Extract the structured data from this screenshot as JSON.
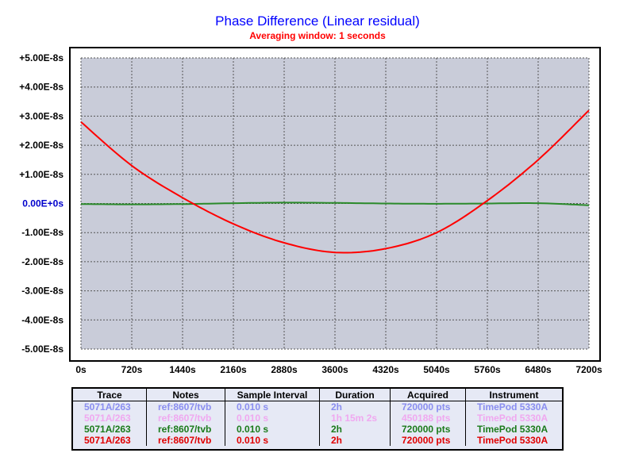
{
  "chart_data": {
    "type": "line",
    "title": "Phase Difference (Linear residual)",
    "subtitle": "Averaging window: 1 seconds",
    "xlim": [
      0,
      7200
    ],
    "ylim": [
      -5e-08,
      5e-08
    ],
    "x_ticks": [
      "0s",
      "720s",
      "1440s",
      "2160s",
      "2880s",
      "3600s",
      "4320s",
      "5040s",
      "5760s",
      "6480s",
      "7200s"
    ],
    "y_ticks": [
      "+5.00E-8s",
      "+4.00E-8s",
      "+3.00E-8s",
      "+2.00E-8s",
      "+1.00E-8s",
      "0.00E+0s",
      "-1.00E-8s",
      "-2.00E-8s",
      "-3.00E-8s",
      "-4.00E-8s",
      "-5.00E-8s"
    ],
    "zero_tick_color": "#0000cc",
    "grid": true,
    "plot_background": "#c9ccd9",
    "series": [
      {
        "color": "#2a8a2a",
        "x": [
          0,
          720,
          1440,
          2160,
          2880,
          3600,
          4320,
          5040,
          5760,
          6480,
          7200
        ],
        "y": [
          -2e-10,
          -3e-10,
          -2e-10,
          1e-10,
          3e-10,
          2e-10,
          0,
          -1e-10,
          0,
          1e-10,
          -6e-10
        ]
      },
      {
        "color": "#ff0000",
        "x": [
          0,
          720,
          1440,
          2160,
          2880,
          3600,
          4320,
          5040,
          5760,
          6480,
          7200
        ],
        "y": [
          2.8e-08,
          1.3e-08,
          2e-09,
          -7e-09,
          -1.35e-08,
          -1.68e-08,
          -1.55e-08,
          -1e-08,
          1e-09,
          1.5e-08,
          3.2e-08
        ]
      }
    ]
  },
  "legend": {
    "headers": [
      "Trace",
      "Notes",
      "Sample Interval",
      "Duration",
      "Acquired",
      "Instrument"
    ],
    "rows": [
      {
        "color": "#8a8ef0",
        "cells": [
          "5071A/263",
          "ref:8607/tvb",
          "0.010 s",
          "2h",
          "720000 pts",
          "TimePod 5330A"
        ]
      },
      {
        "color": "#f0a8f0",
        "cells": [
          "5071A/263",
          "ref:8607/tvb",
          "0.010 s",
          "1h 15m 2s",
          "450188 pts",
          "TimePod 5330A"
        ]
      },
      {
        "color": "#1a7a1a",
        "cells": [
          "5071A/263",
          "ref:8607/tvb",
          "0.010 s",
          "2h",
          "720000 pts",
          "TimePod 5330A"
        ]
      },
      {
        "color": "#e00000",
        "cells": [
          "5071A/263",
          "ref:8607/tvb",
          "0.010 s",
          "2h",
          "720000 pts",
          "TimePod 5330A"
        ]
      }
    ]
  }
}
